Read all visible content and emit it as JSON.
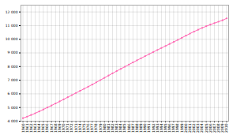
{
  "chart_data": {
    "type": "line",
    "x": [
      1960,
      1961,
      1962,
      1963,
      1964,
      1965,
      1966,
      1967,
      1968,
      1969,
      1970,
      1971,
      1972,
      1973,
      1974,
      1975,
      1976,
      1977,
      1978,
      1979,
      1980,
      1981,
      1982,
      1983,
      1984,
      1985,
      1986,
      1987,
      1988,
      1989,
      1990,
      1991,
      1992,
      1993,
      1994,
      1995,
      1996,
      1997,
      1998,
      1999,
      2000,
      2001,
      2002,
      2003,
      2004,
      2005,
      2006,
      2007,
      2008,
      2009,
      2010
    ],
    "values": [
      4221,
      4332,
      4451,
      4578,
      4714,
      4857,
      5004,
      5149,
      5297,
      5448,
      5601,
      5754,
      5909,
      6065,
      6218,
      6370,
      6524,
      6681,
      6843,
      7008,
      7175,
      7341,
      7506,
      7668,
      7829,
      7988,
      8146,
      8302,
      8458,
      8612,
      8764,
      8915,
      9066,
      9215,
      9363,
      9508,
      9655,
      9803,
      9954,
      10107,
      10262,
      10415,
      10560,
      10700,
      10831,
      10955,
      11072,
      11182,
      11285,
      11390,
      11532
    ],
    "color": "#FF69B4",
    "marker": "o",
    "xlim": [
      1959.5,
      2010.5
    ],
    "xticks": [
      1960,
      1961,
      1962,
      1963,
      1964,
      1965,
      1966,
      1967,
      1968,
      1969,
      1970,
      1971,
      1972,
      1973,
      1974,
      1975,
      1976,
      1977,
      1978,
      1979,
      1980,
      1981,
      1982,
      1983,
      1984,
      1985,
      1986,
      1987,
      1988,
      1989,
      1990,
      1991,
      1992,
      1993,
      1994,
      1995,
      1996,
      1997,
      1998,
      1999,
      2000,
      2001,
      2002,
      2003,
      2004,
      2005,
      2006,
      2007,
      2008,
      2009,
      2010
    ],
    "ylim": [
      4000,
      12500
    ],
    "yticks": [
      {
        "value": 4000,
        "label": "4 000"
      },
      {
        "value": 5000,
        "label": "5 000"
      },
      {
        "value": 6000,
        "label": "6 000"
      },
      {
        "value": 7000,
        "label": "7 000"
      },
      {
        "value": 8000,
        "label": "8 000"
      },
      {
        "value": 9000,
        "label": "9 000"
      },
      {
        "value": 10000,
        "label": "10 000"
      },
      {
        "value": 11000,
        "label": "11 000"
      },
      {
        "value": 12000,
        "label": "12 000"
      }
    ],
    "grid": true
  }
}
